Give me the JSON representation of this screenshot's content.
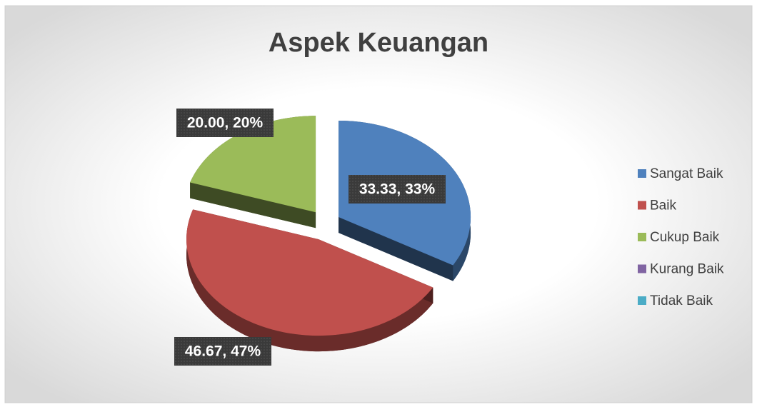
{
  "chart_data": {
    "type": "pie",
    "title": "Aspek Keuangan",
    "categories": [
      "Sangat Baik",
      "Baik",
      "Cukup Baik",
      "Kurang Baik",
      "Tidak Baik"
    ],
    "values": [
      33.33,
      46.67,
      20.0,
      0,
      0
    ],
    "value_labels": [
      "33.33, 33%",
      "46.67, 47%",
      "20.00, 20%",
      null,
      null
    ],
    "colors": [
      "#4f81bd",
      "#c0504d",
      "#9bbb59",
      "#8064a2",
      "#4bacc6"
    ],
    "legend": "right"
  }
}
